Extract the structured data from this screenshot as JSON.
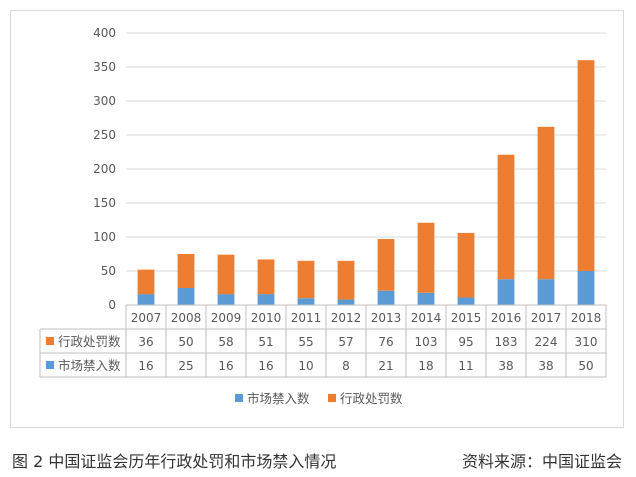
{
  "chart_data": {
    "type": "bar",
    "stacked": true,
    "categories": [
      "2007",
      "2008",
      "2009",
      "2010",
      "2011",
      "2012",
      "2013",
      "2014",
      "2015",
      "2016",
      "2017",
      "2018"
    ],
    "series": [
      {
        "name": "市场禁入数",
        "color": "#5b9bd5",
        "values": [
          16,
          25,
          16,
          16,
          10,
          8,
          21,
          18,
          11,
          38,
          38,
          50
        ]
      },
      {
        "name": "行政处罚数",
        "color": "#ed7d31",
        "values": [
          36,
          50,
          58,
          51,
          55,
          57,
          76,
          103,
          95,
          183,
          224,
          310
        ]
      }
    ],
    "ylim": [
      0,
      400
    ],
    "yticks": [
      0,
      50,
      100,
      150,
      200,
      250,
      300,
      350,
      400
    ],
    "grid": true,
    "legend": "bottom",
    "data_table": true,
    "title": "",
    "xlabel": "",
    "ylabel": ""
  },
  "caption": {
    "left": "图 2  中国证监会历年行政处罚和市场禁入情况",
    "right": "资料来源：中国证监会"
  }
}
